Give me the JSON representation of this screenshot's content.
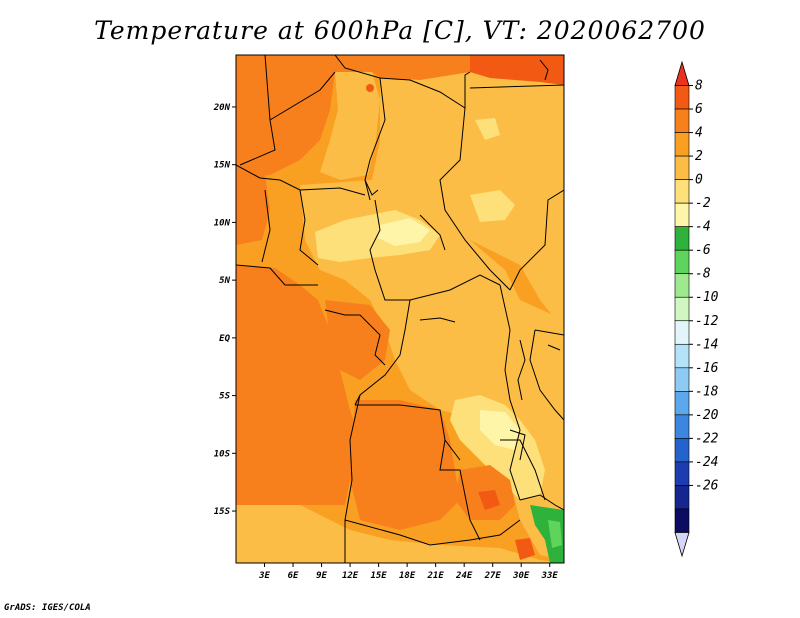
{
  "title": "Temperature at 600hPa [C], VT: 2020062700",
  "footer": "GrADS: IGES/COLA",
  "map": {
    "lon_range": [
      0,
      34.5
    ],
    "lat_range": [
      -19.5,
      24.5
    ],
    "x_ticks": [
      "3E",
      "6E",
      "9E",
      "12E",
      "15E",
      "18E",
      "21E",
      "24E",
      "27E",
      "30E",
      "33E"
    ],
    "x_tick_values": [
      3,
      6,
      9,
      12,
      15,
      18,
      21,
      24,
      27,
      30,
      33
    ],
    "y_ticks": [
      "20N",
      "15N",
      "10N",
      "5N",
      "EQ",
      "5S",
      "10S",
      "15S"
    ],
    "y_tick_values": [
      20,
      15,
      10,
      5,
      0,
      -5,
      -10,
      -15
    ]
  },
  "colorbar": {
    "labels": [
      "8",
      "6",
      "4",
      "2",
      "0",
      "-2",
      "-4",
      "-6",
      "-8",
      "-10",
      "-12",
      "-14",
      "-16",
      "-18",
      "-20",
      "-22",
      "-24",
      "-26"
    ],
    "colors": [
      "#e8341e",
      "#f25a14",
      "#f7801c",
      "#f9a023",
      "#fbbd46",
      "#fde07a",
      "#fff5a8",
      "#2fb23c",
      "#5fd45c",
      "#9ee88e",
      "#d0f6c2",
      "#e1f5fa",
      "#b4e2f8",
      "#8ecbf4",
      "#5ba8ec",
      "#3c86e0",
      "#2563cc",
      "#1c3cb0",
      "#15268f",
      "#0b0c62"
    ],
    "low_end_color": "#d6d6f8"
  },
  "palette": {
    "warm_2_4": "#f9a023",
    "warm_0_2": "#fbbd46",
    "cool_m2_0": "#fde07a",
    "cool_m4_m2": "#fff5a8",
    "warm_4_6": "#f7801c",
    "warm_6_8": "#f25a14",
    "green_m6_m4": "#2fb23c",
    "green_m8_m6": "#5fd45c",
    "border": "#000000"
  }
}
